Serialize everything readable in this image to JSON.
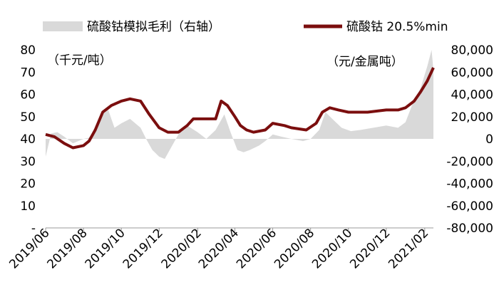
{
  "chart_data": {
    "type": "area+line",
    "legend": [
      {
        "name": "硫酸钴模拟毛利（右轴）",
        "kind": "area",
        "color": "#d9d9d9"
      },
      {
        "name": "硫酸钴 20.5%min",
        "kind": "line",
        "color": "#7b0e0e"
      }
    ],
    "left_axis": {
      "unit": "（千元/吨）",
      "range": [
        0,
        80
      ],
      "ticks": [
        "-",
        "10",
        "20",
        "30",
        "40",
        "50",
        "60",
        "70",
        "80"
      ]
    },
    "right_axis": {
      "unit": "（元/金属吨）",
      "range": [
        -80000,
        80000
      ],
      "ticks": [
        "-80,000",
        "-60,000",
        "-40,000",
        "-20,000",
        "0",
        "20,000",
        "40,000",
        "60,000",
        "80,000"
      ]
    },
    "x_axis": {
      "range": [
        "2019-06-01",
        "2021-02-15"
      ],
      "ticks": [
        "2019/06",
        "2019/08",
        "2019/10",
        "2019/12",
        "2020/02",
        "2020/04",
        "2020/06",
        "2020/08",
        "2020/10",
        "2020/12",
        "2021/02"
      ]
    },
    "price_series": {
      "name": "硫酸钴 20.5%min",
      "points": [
        [
          "2019-06-01",
          42
        ],
        [
          "2019-06-15",
          41
        ],
        [
          "2019-07-01",
          38
        ],
        [
          "2019-07-15",
          36
        ],
        [
          "2019-08-01",
          37
        ],
        [
          "2019-08-10",
          39
        ],
        [
          "2019-08-20",
          44
        ],
        [
          "2019-09-01",
          52
        ],
        [
          "2019-09-15",
          55
        ],
        [
          "2019-10-01",
          57
        ],
        [
          "2019-10-15",
          58
        ],
        [
          "2019-11-01",
          57
        ],
        [
          "2019-11-15",
          51
        ],
        [
          "2019-12-01",
          45
        ],
        [
          "2019-12-15",
          43
        ],
        [
          "2020-01-01",
          43
        ],
        [
          "2020-01-15",
          46
        ],
        [
          "2020-01-25",
          49
        ],
        [
          "2020-02-10",
          49
        ],
        [
          "2020-03-01",
          49
        ],
        [
          "2020-03-10",
          57
        ],
        [
          "2020-03-20",
          55
        ],
        [
          "2020-04-01",
          50
        ],
        [
          "2020-04-10",
          46
        ],
        [
          "2020-04-20",
          44
        ],
        [
          "2020-05-01",
          43
        ],
        [
          "2020-05-20",
          44
        ],
        [
          "2020-06-01",
          47
        ],
        [
          "2020-06-20",
          46
        ],
        [
          "2020-07-01",
          45
        ],
        [
          "2020-07-25",
          44
        ],
        [
          "2020-08-10",
          47
        ],
        [
          "2020-08-20",
          52
        ],
        [
          "2020-09-01",
          54
        ],
        [
          "2020-09-15",
          53
        ],
        [
          "2020-10-01",
          52
        ],
        [
          "2020-10-15",
          52
        ],
        [
          "2020-11-01",
          52
        ],
        [
          "2020-12-01",
          53
        ],
        [
          "2020-12-20",
          53
        ],
        [
          "2021-01-01",
          54
        ],
        [
          "2021-01-15",
          57
        ],
        [
          "2021-01-25",
          61
        ],
        [
          "2021-02-05",
          66
        ],
        [
          "2021-02-15",
          72
        ]
      ]
    },
    "margin_series": {
      "name": "硫酸钴模拟毛利（右轴）",
      "points": [
        [
          "2019-06-01",
          -16000
        ],
        [
          "2019-06-10",
          5000
        ],
        [
          "2019-06-20",
          6000
        ],
        [
          "2019-07-01",
          2000
        ],
        [
          "2019-07-15",
          -4000
        ],
        [
          "2019-08-01",
          0
        ],
        [
          "2019-08-10",
          1000
        ],
        [
          "2019-08-20",
          8000
        ],
        [
          "2019-09-01",
          22000
        ],
        [
          "2019-09-10",
          26000
        ],
        [
          "2019-09-20",
          10000
        ],
        [
          "2019-10-01",
          14000
        ],
        [
          "2019-10-15",
          18000
        ],
        [
          "2019-11-01",
          10000
        ],
        [
          "2019-11-10",
          0
        ],
        [
          "2019-11-20",
          -10000
        ],
        [
          "2019-12-01",
          -16000
        ],
        [
          "2019-12-10",
          -18000
        ],
        [
          "2019-12-20",
          -8000
        ],
        [
          "2020-01-01",
          4000
        ],
        [
          "2020-01-15",
          12000
        ],
        [
          "2020-02-01",
          6000
        ],
        [
          "2020-02-15",
          0
        ],
        [
          "2020-03-01",
          8000
        ],
        [
          "2020-03-15",
          22000
        ],
        [
          "2020-03-25",
          6000
        ],
        [
          "2020-04-05",
          -10000
        ],
        [
          "2020-04-15",
          -12000
        ],
        [
          "2020-04-25",
          -10000
        ],
        [
          "2020-05-10",
          -6000
        ],
        [
          "2020-05-20",
          -2000
        ],
        [
          "2020-06-01",
          4000
        ],
        [
          "2020-06-15",
          2000
        ],
        [
          "2020-07-01",
          0
        ],
        [
          "2020-07-20",
          -2000
        ],
        [
          "2020-08-01",
          0
        ],
        [
          "2020-08-15",
          8000
        ],
        [
          "2020-08-25",
          24000
        ],
        [
          "2020-09-05",
          18000
        ],
        [
          "2020-09-20",
          10000
        ],
        [
          "2020-10-05",
          7000
        ],
        [
          "2020-10-20",
          8000
        ],
        [
          "2020-11-10",
          10000
        ],
        [
          "2020-12-01",
          12000
        ],
        [
          "2020-12-20",
          10000
        ],
        [
          "2021-01-01",
          15000
        ],
        [
          "2021-01-15",
          35000
        ],
        [
          "2021-01-25",
          45000
        ],
        [
          "2021-02-05",
          65000
        ],
        [
          "2021-02-12",
          80000
        ],
        [
          "2021-02-15",
          62000
        ]
      ]
    }
  }
}
